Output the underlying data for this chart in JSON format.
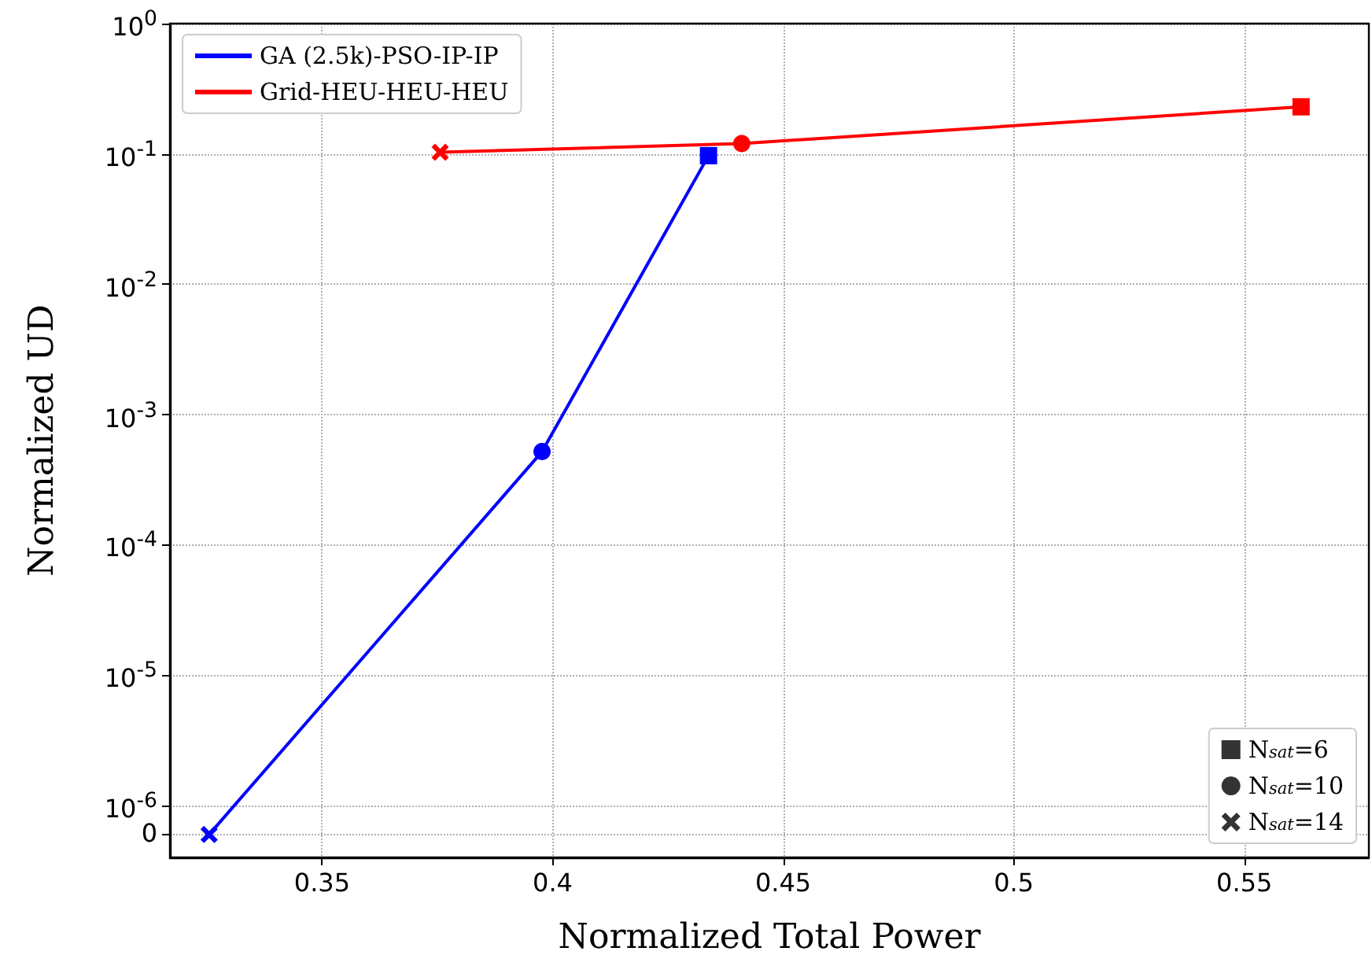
{
  "chart_data": {
    "type": "line",
    "xlabel": "Normalized Total Power",
    "ylabel": "Normalized UD",
    "log": "y",
    "xlim": [
      0.317,
      0.577
    ],
    "xticks": [
      0.35,
      0.4,
      0.45,
      0.5,
      0.55
    ],
    "ylim": [
      4e-07,
      1
    ],
    "yticks": [
      {
        "value": 6e-07,
        "label": "0"
      },
      {
        "value": 1e-06,
        "label": "10$^{-6}$"
      },
      {
        "value": 1e-05,
        "label": "10$^{-5}$"
      },
      {
        "value": 0.0001,
        "label": "10$^{-4}$"
      },
      {
        "value": 0.001,
        "label": "10$^{-3}$"
      },
      {
        "value": 0.01,
        "label": "10$^{-2}$"
      },
      {
        "value": 0.1,
        "label": "10$^{-1}$"
      },
      {
        "value": 1,
        "label": "10$^{0}$"
      }
    ],
    "grid": true,
    "legend": [
      "top left",
      "bottom right"
    ],
    "line_style": "solid",
    "series": [
      {
        "name": "GA (2.5k)-PSO-IP-IP",
        "color": "#0000ff",
        "x": [
          0.3255,
          0.3977,
          0.4338
        ],
        "values": [
          6e-07,
          0.00052,
          0.097
        ],
        "marker": [
          "cross",
          "circle",
          "square"
        ]
      },
      {
        "name": "Grid-HEU-HEU-HEU",
        "color": "#ff0000",
        "x": [
          0.3756,
          0.441,
          0.5623
        ],
        "values": [
          0.103,
          0.12,
          0.23
        ],
        "marker": [
          "cross",
          "circle",
          "square"
        ]
      },
      {
        "name": "N$_{sat}$=6",
        "type": "scatter",
        "color": "#000000",
        "marker": "square"
      },
      {
        "name": "N$_{sat}$=10",
        "type": "scatter",
        "color": "#000000",
        "marker": "circle"
      },
      {
        "name": "N$_{sat}$=14",
        "type": "scatter",
        "color": "#000000",
        "marker": "cross"
      }
    ]
  }
}
